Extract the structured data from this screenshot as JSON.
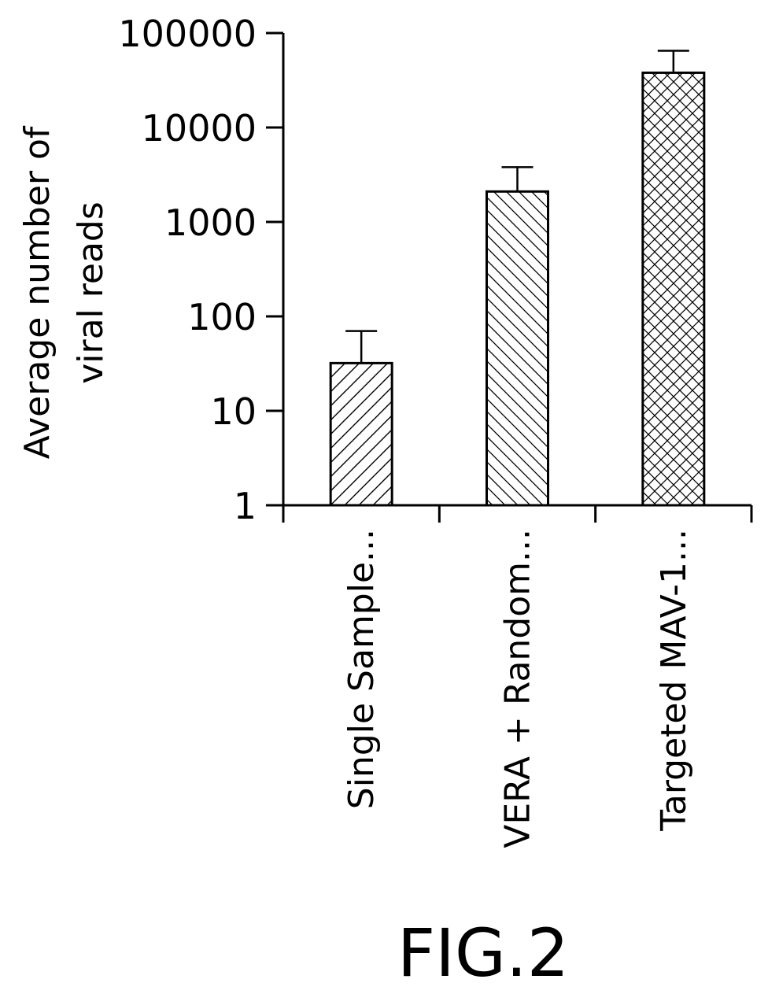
{
  "chart_data": {
    "type": "bar",
    "ylabel": "Average number of viral reads",
    "ylabel_lines": [
      "Average number of",
      "viral reads"
    ],
    "yscale": "log",
    "ylim": [
      1,
      100000
    ],
    "yticks": [
      1,
      10,
      100,
      1000,
      10000,
      100000
    ],
    "ytick_labels": [
      "1",
      "10",
      "100",
      "1000",
      "10000",
      "100000"
    ],
    "categories": [
      "Single Sample...",
      "VERA + Random...",
      "Targeted MAV-1..."
    ],
    "values": [
      32,
      2100,
      38000
    ],
    "error_upper": [
      70,
      3800,
      65000
    ],
    "patterns": [
      "diagonal-forward",
      "diagonal-back",
      "crosshatch"
    ],
    "grid": false
  },
  "caption": "FIG.2"
}
